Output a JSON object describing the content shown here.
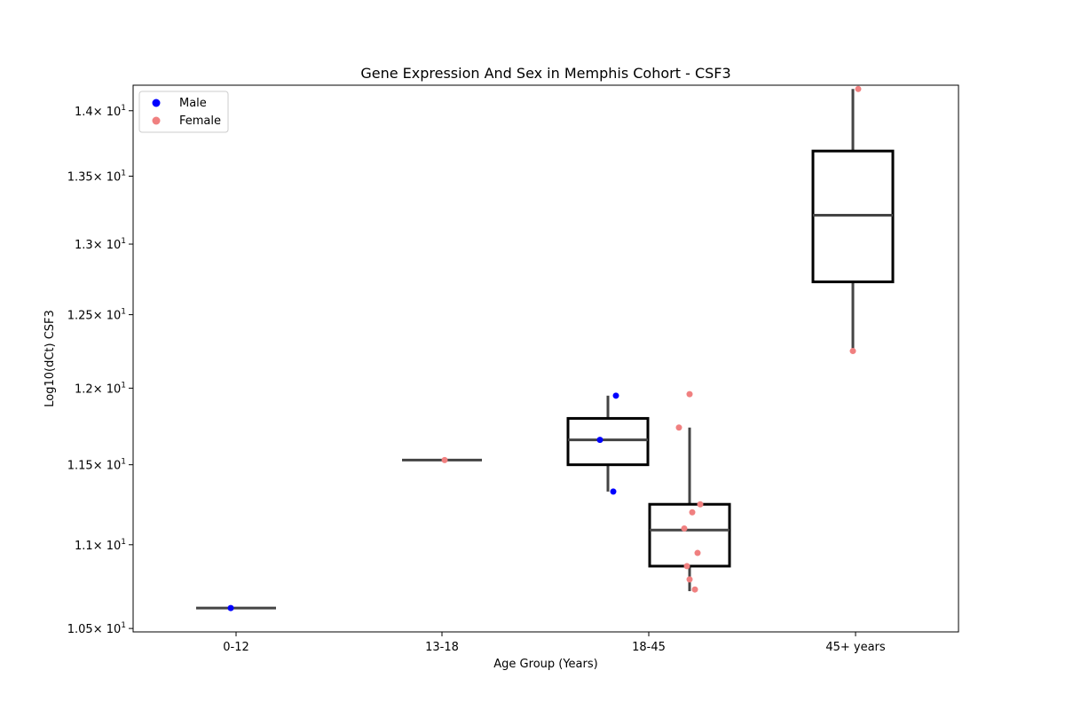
{
  "chart_data": {
    "type": "box",
    "title": "Gene Expression And Sex in Memphis Cohort - CSF3",
    "xlabel": "Age Group (Years)",
    "ylabel": "Log10(dCt) CSF3",
    "y_scale": "log",
    "ylim": [
      10.48,
      14.2
    ],
    "categories": [
      "0-12",
      "13-18",
      "18-45",
      "45+ years"
    ],
    "y_ticks": [
      {
        "value": 10.5,
        "mantissa": "1.05"
      },
      {
        "value": 11.0,
        "mantissa": "1.1"
      },
      {
        "value": 11.5,
        "mantissa": "1.15"
      },
      {
        "value": 12.0,
        "mantissa": "1.2"
      },
      {
        "value": 12.5,
        "mantissa": "1.25"
      },
      {
        "value": 13.0,
        "mantissa": "1.3"
      },
      {
        "value": 13.5,
        "mantissa": "1.35"
      },
      {
        "value": 14.0,
        "mantissa": "1.4"
      }
    ],
    "tick_times": "× 10",
    "tick_exp": "1",
    "series": [
      {
        "name": "Male",
        "color": "#0000ff"
      },
      {
        "name": "Female",
        "color": "#f08080"
      }
    ],
    "legend_position": "upper-left",
    "boxes": [
      {
        "category": "0-12",
        "sex": "Male",
        "q1": 10.62,
        "median": 10.62,
        "q3": 10.62,
        "whisker_low": 10.62,
        "whisker_high": 10.62
      },
      {
        "category": "13-18",
        "sex": "Female",
        "q1": 11.53,
        "median": 11.53,
        "q3": 11.53,
        "whisker_low": 11.53,
        "whisker_high": 11.53
      },
      {
        "category": "18-45",
        "sex": "Male",
        "q1": 11.5,
        "median": 11.66,
        "q3": 11.8,
        "whisker_low": 11.33,
        "whisker_high": 11.95
      },
      {
        "category": "18-45",
        "sex": "Female",
        "q1": 10.87,
        "median": 11.09,
        "q3": 11.25,
        "whisker_low": 10.72,
        "whisker_high": 11.74
      },
      {
        "category": "45+ years",
        "sex": "Female",
        "q1": 12.73,
        "median": 13.21,
        "q3": 13.69,
        "whisker_low": 12.25,
        "whisker_high": 14.17
      }
    ],
    "points": [
      {
        "category": "0-12",
        "sex": "Male",
        "value": 10.62
      },
      {
        "category": "13-18",
        "sex": "Female",
        "value": 11.53
      },
      {
        "category": "18-45",
        "sex": "Male",
        "value": 11.95
      },
      {
        "category": "18-45",
        "sex": "Male",
        "value": 11.66
      },
      {
        "category": "18-45",
        "sex": "Male",
        "value": 11.33
      },
      {
        "category": "18-45",
        "sex": "Female",
        "value": 11.96
      },
      {
        "category": "18-45",
        "sex": "Female",
        "value": 11.74
      },
      {
        "category": "18-45",
        "sex": "Female",
        "value": 11.25
      },
      {
        "category": "18-45",
        "sex": "Female",
        "value": 11.2
      },
      {
        "category": "18-45",
        "sex": "Female",
        "value": 11.1
      },
      {
        "category": "18-45",
        "sex": "Female",
        "value": 10.95
      },
      {
        "category": "18-45",
        "sex": "Female",
        "value": 10.87
      },
      {
        "category": "18-45",
        "sex": "Female",
        "value": 10.79
      },
      {
        "category": "18-45",
        "sex": "Female",
        "value": 10.73
      },
      {
        "category": "45+ years",
        "sex": "Female",
        "value": 14.17
      },
      {
        "category": "45+ years",
        "sex": "Female",
        "value": 12.25
      }
    ],
    "grid": false
  }
}
